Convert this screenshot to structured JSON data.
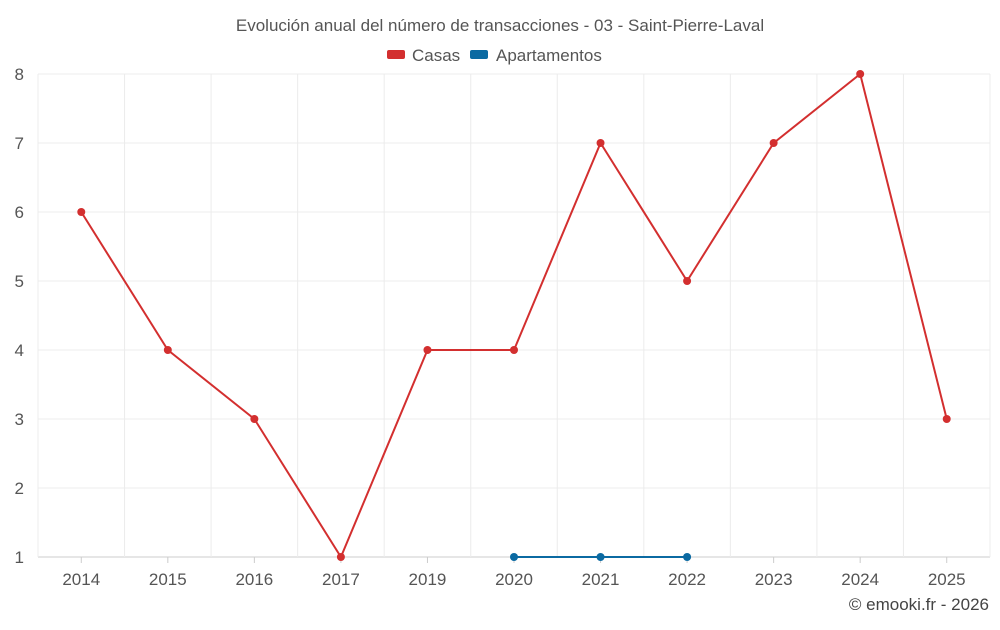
{
  "chart_data": {
    "type": "line",
    "title": "Evolución anual del número de transacciones - 03 - Saint-Pierre-Laval",
    "categories": [
      "2014",
      "2015",
      "2016",
      "2017",
      "2019",
      "2020",
      "2021",
      "2022",
      "2023",
      "2024",
      "2025"
    ],
    "y_ticks": [
      "1",
      "2",
      "3",
      "4",
      "5",
      "6",
      "7",
      "8"
    ],
    "ylim": [
      1,
      8
    ],
    "grid": true,
    "legend_position": "top-center",
    "series": [
      {
        "name": "Casas",
        "color": "#d32f2f",
        "values": [
          6,
          4,
          3,
          1,
          4,
          4,
          7,
          5,
          7,
          8,
          3
        ]
      },
      {
        "name": "Apartamentos",
        "color": "#0b6aa2",
        "values": [
          null,
          null,
          null,
          null,
          null,
          1,
          1,
          1,
          null,
          null,
          null
        ]
      }
    ],
    "footer": "© emooki.fr - 2026"
  }
}
